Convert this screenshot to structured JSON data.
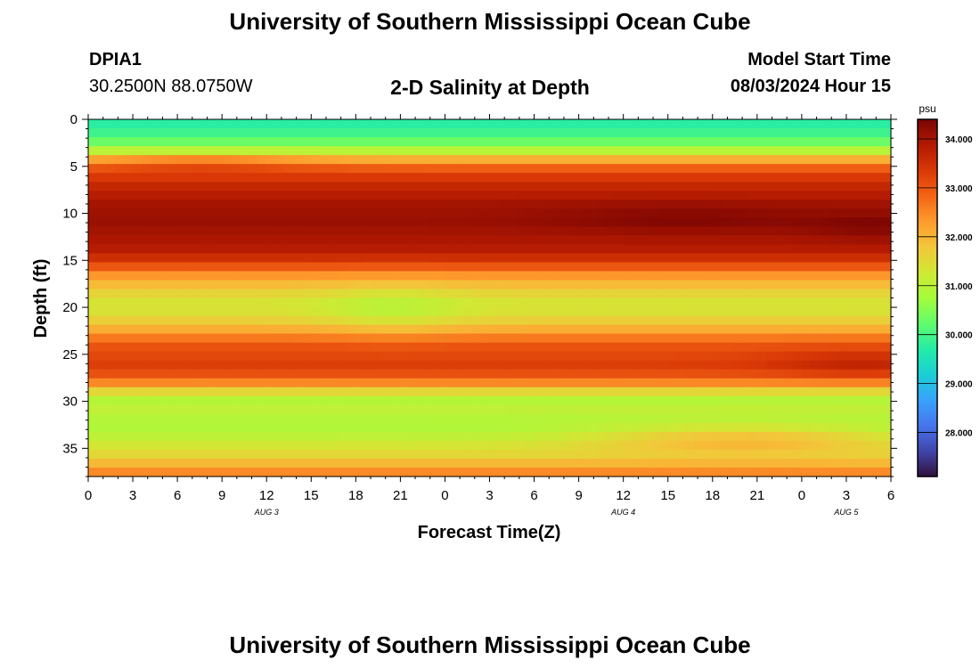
{
  "header": {
    "title": "University of Southern Mississippi Ocean Cube",
    "station_id": "DPIA1",
    "coords": "30.2500N  88.0750W",
    "plot_title": "2-D Salinity at Depth",
    "model_start_label": "Model Start Time",
    "model_start_value": "08/03/2024 Hour 15",
    "footer_title": "University of Southern Mississippi Ocean Cube"
  },
  "chart_data": {
    "type": "heatmap",
    "title": "2-D Salinity at Depth",
    "xlabel": "Forecast Time(Z)",
    "ylabel": "Depth (ft)",
    "x_tick_labels": [
      "0",
      "3",
      "6",
      "9",
      "12",
      "15",
      "18",
      "21",
      "0",
      "3",
      "6",
      "9",
      "12",
      "15",
      "18",
      "21",
      "0",
      "3",
      "6"
    ],
    "x_range_hours": [
      0,
      54
    ],
    "day_labels": [
      {
        "label": "AUG 3",
        "hour": 12
      },
      {
        "label": "AUG 4",
        "hour": 36
      },
      {
        "label": "AUG 5",
        "hour": 51
      }
    ],
    "y_tick_labels": [
      "0",
      "5",
      "10",
      "15",
      "20",
      "25",
      "30",
      "35"
    ],
    "y_range": [
      0,
      38
    ],
    "y_reversed": true,
    "colorbar": {
      "unit": "psu",
      "tick_labels": [
        "34.000",
        "33.000",
        "32.000",
        "31.000",
        "30.000",
        "29.000",
        "28.000"
      ],
      "range": [
        27.1,
        34.4
      ],
      "colors": [
        "#30123b",
        "#4145ab",
        "#4675ed",
        "#39a2fc",
        "#1bcfd4",
        "#24eca6",
        "#61fc6c",
        "#a4fc3b",
        "#d1e834",
        "#f3c63a",
        "#fe9b2d",
        "#f36315",
        "#d93806",
        "#b11901",
        "#7a0403"
      ]
    },
    "depth_profile": {
      "depths_ft": [
        0,
        1,
        2,
        3,
        4,
        5,
        6,
        7,
        9,
        11,
        12,
        14,
        15,
        16,
        17,
        18,
        19,
        20,
        21,
        22,
        23,
        24,
        26,
        27,
        28,
        29,
        30,
        31,
        32,
        33,
        34,
        35,
        36,
        37,
        38
      ],
      "salinity_psu": [
        29.7,
        29.8,
        30.1,
        30.6,
        31.8,
        32.8,
        33.3,
        33.6,
        34.0,
        34.1,
        34.0,
        33.8,
        33.4,
        32.8,
        32.1,
        31.8,
        31.4,
        31.3,
        31.5,
        31.9,
        32.5,
        33.0,
        33.3,
        33.1,
        32.5,
        31.5,
        30.9,
        31.1,
        30.9,
        30.9,
        31.1,
        31.4,
        31.6,
        32.2,
        32.7
      ]
    },
    "features": [
      {
        "hour": 20.5,
        "depth_ft": 20.3,
        "salinity_psu": 31.0,
        "radius_h": 4.5,
        "radius_ft": 2.6
      },
      {
        "hour": 7.5,
        "depth_ft": 4.6,
        "salinity_psu": 32.9,
        "radius_h": 7,
        "radius_ft": 0.8
      },
      {
        "hour": 40,
        "depth_ft": 10.5,
        "salinity_psu": 34.3,
        "radius_h": 9,
        "radius_ft": 1.6
      },
      {
        "hour": 53,
        "depth_ft": 11.5,
        "salinity_psu": 34.3,
        "radius_h": 5,
        "radius_ft": 1.6
      },
      {
        "hour": 52,
        "depth_ft": 26.0,
        "salinity_psu": 33.7,
        "radius_h": 6,
        "radius_ft": 1.5
      },
      {
        "hour": 44,
        "depth_ft": 34.0,
        "salinity_psu": 31.9,
        "radius_h": 10,
        "radius_ft": 1.5
      }
    ]
  }
}
